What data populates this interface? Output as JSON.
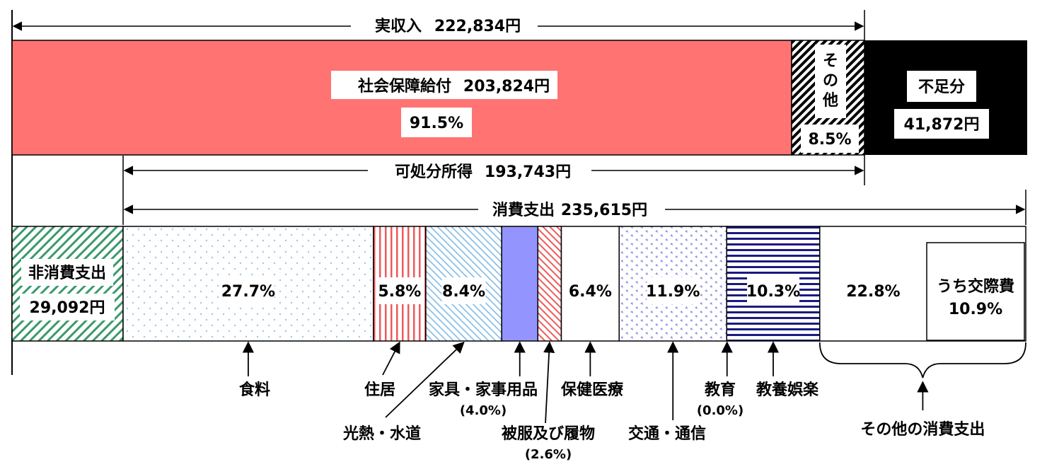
{
  "chart_data": {
    "type": "bar",
    "income": {
      "total_label": "実収入",
      "total_value": "222,834円",
      "segments": [
        {
          "name": "社会保障給付",
          "amount": "203,824円",
          "percent": 91.5,
          "percent_label": "91.5%",
          "color": "#ff7373"
        },
        {
          "name": "その他",
          "percent": 8.5,
          "percent_label": "8.5%"
        }
      ],
      "shortfall": {
        "label": "不足分",
        "value": "41,872円"
      }
    },
    "disposable": {
      "label": "可処分所得",
      "value": "193,743円"
    },
    "expenditure": {
      "label": "消費支出",
      "value": "235,615円",
      "non_consumption": {
        "label": "非消費支出",
        "value": "29,092円"
      },
      "categories": [
        {
          "name": "食料",
          "percent": 27.7,
          "percent_label": "27.7%"
        },
        {
          "name": "住居",
          "percent": 5.8,
          "percent_label": "5.8%"
        },
        {
          "name": "光熱・水道",
          "percent": 8.4,
          "percent_label": "8.4%"
        },
        {
          "name": "家具・家事用品",
          "percent": 4.0,
          "percent_label": "(4.0%)",
          "color": "#9494ff"
        },
        {
          "name": "被服及び履物",
          "percent": 2.6,
          "percent_label": "(2.6%)"
        },
        {
          "name": "保健医療",
          "percent": 6.4,
          "percent_label": "6.4%"
        },
        {
          "name": "交通・通信",
          "percent": 11.9,
          "percent_label": "11.9%"
        },
        {
          "name": "教育",
          "percent": 0.0,
          "percent_label": "(0.0%)"
        },
        {
          "name": "教養娯楽",
          "percent": 10.3,
          "percent_label": "10.3%"
        },
        {
          "name": "その他の消費支出",
          "percent": 22.8,
          "percent_label": "22.8%"
        }
      ],
      "sub_item": {
        "label": "うち交際費",
        "percent": 10.9,
        "percent_label": "10.9%"
      }
    }
  }
}
